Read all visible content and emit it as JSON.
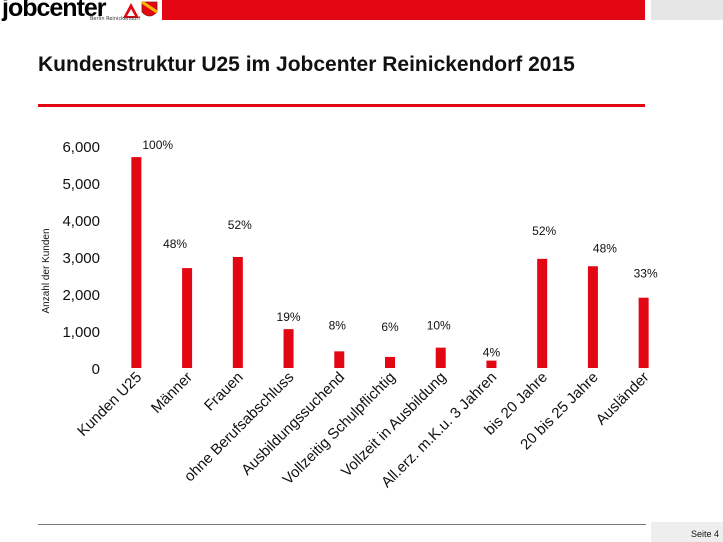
{
  "header": {
    "logo_text": "jobcenter",
    "logo_sub": "Berlin Reinickendorf"
  },
  "slide": {
    "title": "Kundenstruktur U25 im Jobcenter Reinickendorf 2015",
    "page_label": "Seite 4"
  },
  "colors": {
    "accent": "#e30613",
    "bar": "#e30613"
  },
  "chart_data": {
    "type": "bar",
    "title": "",
    "xlabel": "",
    "ylabel": "Anzahl der Kunden",
    "ylim": [
      0,
      6000
    ],
    "yticks": [
      0,
      1000,
      2000,
      3000,
      4000,
      5000,
      6000
    ],
    "ytick_labels": [
      "0",
      "1,000",
      "2,000",
      "3,000",
      "4,000",
      "5,000",
      "6,000"
    ],
    "grid": false,
    "categories": [
      "Kunden U25",
      "Männer",
      "Frauen",
      "ohne Berufsabschluss",
      "Ausbildungssuchend",
      "Vollzeitig Schulpflichtig",
      "Vollzeit in Ausbildung",
      "All.erz. m.K.u. 3 Jahren",
      "bis 20 Jahre",
      "20 bis 25 Jahre",
      "Ausländer"
    ],
    "values": [
      5700,
      2700,
      3000,
      1050,
      450,
      300,
      550,
      200,
      2950,
      2750,
      1900
    ],
    "data_labels": [
      "100%",
      "48%",
      "52%",
      "19%",
      "8%",
      "6%",
      "10%",
      "4%",
      "52%",
      "48%",
      "33%"
    ]
  }
}
